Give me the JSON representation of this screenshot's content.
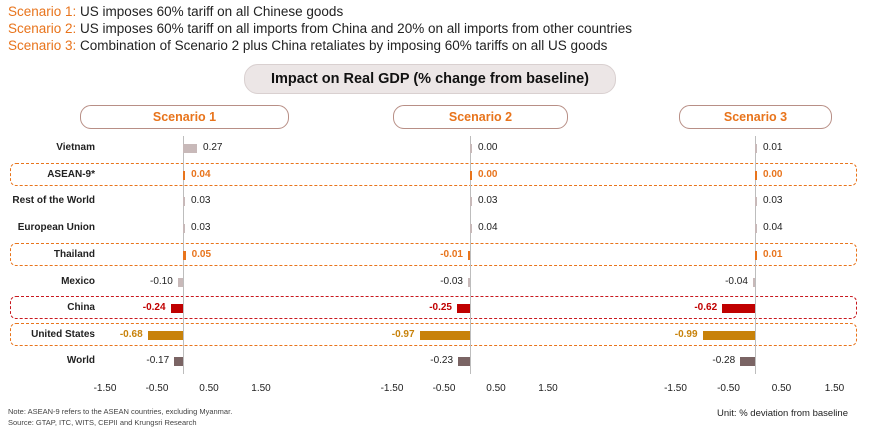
{
  "scenarios": [
    {
      "tag": "Scenario 1:",
      "text": " US imposes 60% tariff on all Chinese goods"
    },
    {
      "tag": "Scenario 2:",
      "text": " US imposes 60% tariff on all imports from China and 20% on all imports from other countries"
    },
    {
      "tag": "Scenario 3:",
      "text": " Combination of Scenario 2 plus China retaliates by imposing 60% tariffs on all US goods"
    }
  ],
  "colors": {
    "accent": "#e8741c",
    "highlight_red": "#c8181e",
    "neutral_bar": "#c8b9b9",
    "world_bar": "#7a6464",
    "china_bar": "#c00000",
    "us_bar": "#c8820a"
  },
  "chart_data": {
    "type": "bar",
    "orientation": "horizontal",
    "title": "Impact on Real GDP (% change from baseline)",
    "categories": [
      "Vietnam",
      "ASEAN-9*",
      "Rest of the World",
      "European Union",
      "Thailand",
      "Mexico",
      "China",
      "United States",
      "World"
    ],
    "series": [
      {
        "name": "Scenario 1",
        "values": [
          0.27,
          0.04,
          0.03,
          0.03,
          0.05,
          -0.1,
          -0.24,
          -0.68,
          -0.17
        ],
        "labels": [
          "0.27",
          "0.04",
          "0.03",
          "0.03",
          "0.05",
          "-0.10",
          "-0.24",
          "-0.68",
          "-0.17"
        ]
      },
      {
        "name": "Scenario 2",
        "values": [
          0.0,
          0.0,
          0.03,
          0.04,
          -0.01,
          -0.03,
          -0.25,
          -0.97,
          -0.23
        ],
        "labels": [
          "0.00",
          "0.00",
          "0.03",
          "0.04",
          "-0.01",
          "-0.03",
          "-0.25",
          "-0.97",
          "-0.23"
        ]
      },
      {
        "name": "Scenario 3",
        "values": [
          0.01,
          0.0,
          0.03,
          0.04,
          0.01,
          -0.04,
          -0.62,
          -0.99,
          -0.28
        ],
        "labels": [
          "0.01",
          "0.00",
          "0.03",
          "0.04",
          "0.01",
          "-0.04",
          "-0.62",
          "-0.99",
          "-0.28"
        ]
      }
    ],
    "highlighted_rows": {
      "ASEAN-9*": "orange",
      "Thailand": "orange",
      "China": "red",
      "United States": "orange"
    },
    "xticks": [
      "-1.50",
      "-0.50",
      "0.50",
      "1.50"
    ],
    "xlim": [
      -1.5,
      1.5
    ],
    "unit_label": "Unit: % deviation from baseline",
    "grid": false,
    "legend": "none"
  },
  "footnotes": {
    "note": "Note: ASEAN-9 refers to the ASEAN countries, excluding Myanmar.",
    "source": "Source: GTAP, ITC, WITS, CEPII and Krungsri Research"
  }
}
